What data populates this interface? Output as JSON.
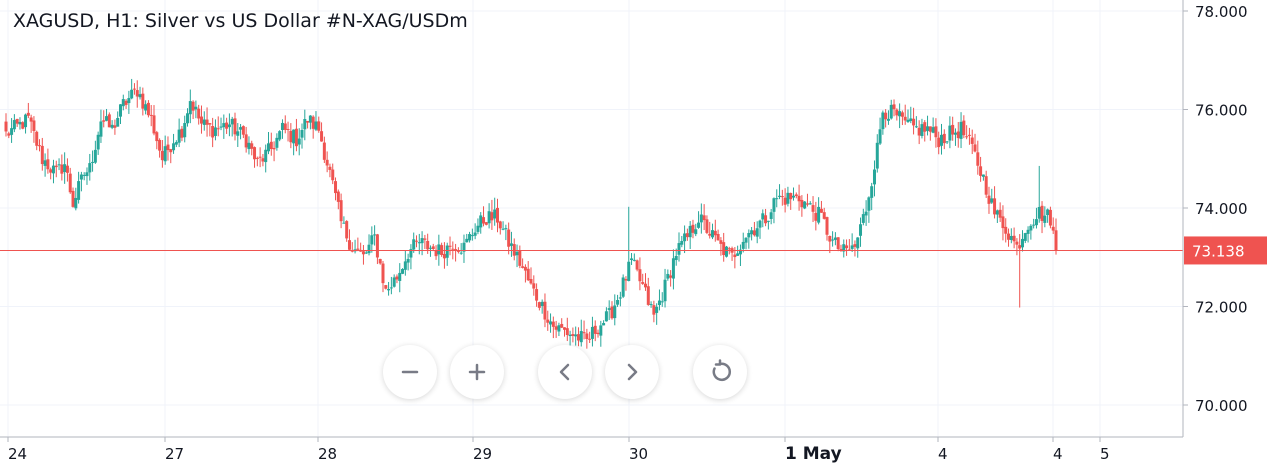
{
  "chart_data": {
    "type": "candlestick",
    "title": "XAGUSD, H1: Silver vs US Dollar #N-XAG/USDm",
    "y_ticks": [
      {
        "label": "78.000",
        "value": 78.0
      },
      {
        "label": "76.000",
        "value": 76.0
      },
      {
        "label": "74.000",
        "value": 74.0
      },
      {
        "label": "72.000",
        "value": 72.0
      },
      {
        "label": "70.000",
        "value": 70.0
      }
    ],
    "x_ticks": [
      "24",
      "27",
      "28",
      "29",
      "30",
      "1 May",
      "4",
      "4",
      "5"
    ],
    "ylim": [
      69.8,
      78.2
    ],
    "current_price": {
      "label": "73.138",
      "value": 73.138
    },
    "colors": {
      "up": "#26a69a",
      "down": "#ef5350",
      "price_line": "#ef5350"
    },
    "anchors": [
      [
        0,
        75.5
      ],
      [
        8,
        75.8
      ],
      [
        13,
        75.0
      ],
      [
        18,
        74.7
      ],
      [
        21,
        74.9
      ],
      [
        24,
        74.1
      ],
      [
        28,
        74.7
      ],
      [
        30,
        74.8
      ],
      [
        34,
        75.8
      ],
      [
        38,
        75.6
      ],
      [
        42,
        76.1
      ],
      [
        47,
        76.4
      ],
      [
        52,
        75.8
      ],
      [
        56,
        75.0
      ],
      [
        60,
        75.4
      ],
      [
        63,
        75.6
      ],
      [
        66,
        76.2
      ],
      [
        70,
        75.7
      ],
      [
        74,
        75.6
      ],
      [
        80,
        75.7
      ],
      [
        86,
        75.4
      ],
      [
        90,
        74.9
      ],
      [
        95,
        75.2
      ],
      [
        99,
        75.6
      ],
      [
        104,
        75.4
      ],
      [
        108,
        75.8
      ],
      [
        112,
        75.6
      ],
      [
        116,
        74.7
      ],
      [
        120,
        73.7
      ],
      [
        124,
        73.2
      ],
      [
        128,
        73.0
      ],
      [
        132,
        73.4
      ],
      [
        136,
        72.3
      ],
      [
        140,
        72.6
      ],
      [
        144,
        73.1
      ],
      [
        148,
        73.3
      ],
      [
        152,
        73.2
      ],
      [
        156,
        73.1
      ],
      [
        160,
        73.3
      ],
      [
        164,
        73.2
      ],
      [
        168,
        73.6
      ],
      [
        172,
        73.8
      ],
      [
        176,
        73.8
      ],
      [
        180,
        73.3
      ],
      [
        184,
        72.9
      ],
      [
        188,
        72.4
      ],
      [
        192,
        72.0
      ],
      [
        196,
        71.6
      ],
      [
        200,
        71.5
      ],
      [
        204,
        71.4
      ],
      [
        208,
        71.3
      ],
      [
        212,
        71.6
      ],
      [
        216,
        71.8
      ],
      [
        220,
        72.3
      ],
      [
        224,
        72.9
      ],
      [
        228,
        72.4
      ],
      [
        232,
        71.8
      ],
      [
        236,
        72.4
      ],
      [
        240,
        73.1
      ],
      [
        244,
        73.4
      ],
      [
        248,
        73.8
      ],
      [
        252,
        73.5
      ],
      [
        256,
        73.2
      ],
      [
        260,
        73.0
      ],
      [
        264,
        73.4
      ],
      [
        268,
        73.6
      ],
      [
        272,
        73.8
      ],
      [
        276,
        74.2
      ],
      [
        280,
        74.2
      ],
      [
        284,
        74.2
      ],
      [
        288,
        74.0
      ],
      [
        292,
        73.8
      ],
      [
        296,
        73.3
      ],
      [
        300,
        73.1
      ],
      [
        304,
        73.2
      ],
      [
        308,
        74.0
      ],
      [
        312,
        75.2
      ],
      [
        314,
        76.0
      ],
      [
        318,
        75.9
      ],
      [
        322,
        75.7
      ],
      [
        326,
        75.6
      ],
      [
        330,
        75.6
      ],
      [
        334,
        75.4
      ],
      [
        338,
        75.5
      ],
      [
        342,
        75.6
      ],
      [
        346,
        75.2
      ],
      [
        350,
        74.6
      ],
      [
        354,
        73.9
      ],
      [
        358,
        73.6
      ],
      [
        362,
        73.2
      ],
      [
        366,
        73.7
      ],
      [
        370,
        73.9
      ],
      [
        374,
        73.8
      ],
      [
        376,
        73.14
      ]
    ]
  }
}
